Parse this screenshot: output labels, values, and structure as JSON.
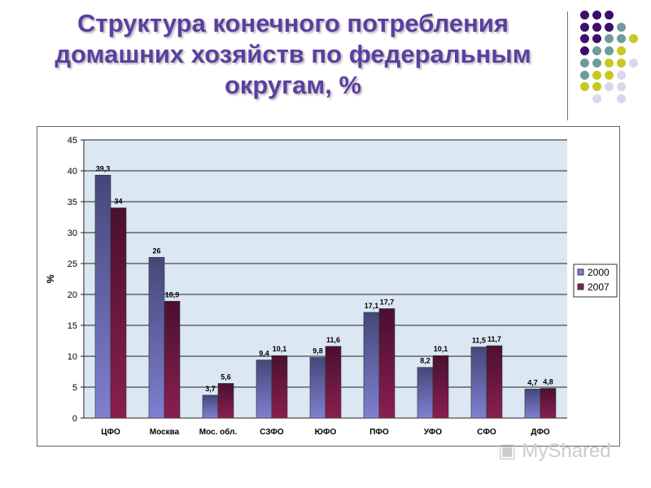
{
  "title": "Структура конечного потребления домашних хозяйств по федеральным округам, %",
  "decoration": {
    "dot_colors": {
      "P": "#3b0f6b",
      "T": "#6e9c9c",
      "Y": "#c8c820",
      "L": "#d8d8ea"
    }
  },
  "watermark": "MyShared",
  "chart_data": {
    "type": "bar",
    "title": "",
    "xlabel": "",
    "ylabel": "%",
    "ylim": [
      0,
      45
    ],
    "yticks": [
      0,
      5,
      10,
      15,
      20,
      25,
      30,
      35,
      40,
      45
    ],
    "grid": true,
    "legend_position": "right",
    "categories": [
      "ЦФО",
      "Москва",
      "Мос. обл.",
      "СЗФО",
      "ЮФО",
      "ПФО",
      "УФО",
      "СФО",
      "ДФО"
    ],
    "series": [
      {
        "name": "2000",
        "color": "#7f80d0",
        "labels": [
          "39,3",
          "26",
          "3,7",
          "9,4",
          "9,8",
          "17,1",
          "8,2",
          "11,5",
          "4,7"
        ],
        "values": [
          39.3,
          26,
          3.7,
          9.4,
          9.8,
          17.1,
          8.2,
          11.5,
          4.7
        ]
      },
      {
        "name": "2007",
        "color": "#8a1f4f",
        "labels": [
          "34",
          "18,9",
          "5,6",
          "10,1",
          "11,6",
          "17,7",
          "10,1",
          "11,7",
          "4,8"
        ],
        "values": [
          34,
          18.9,
          5.6,
          10.1,
          11.6,
          17.7,
          10.1,
          11.7,
          4.8
        ]
      }
    ]
  }
}
